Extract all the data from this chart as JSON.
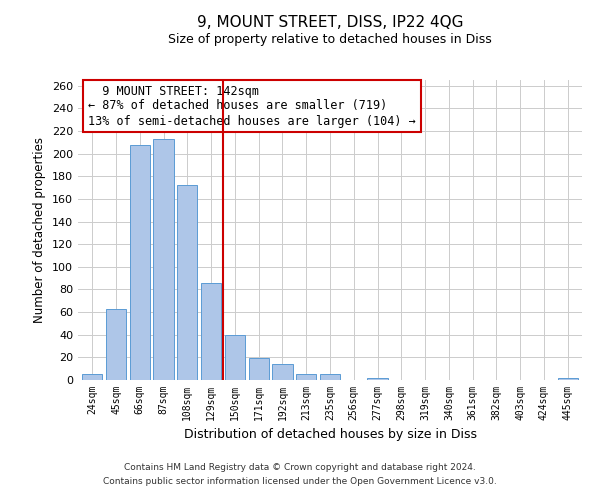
{
  "title1": "9, MOUNT STREET, DISS, IP22 4QG",
  "title2": "Size of property relative to detached houses in Diss",
  "xlabel": "Distribution of detached houses by size in Diss",
  "ylabel": "Number of detached properties",
  "bar_labels": [
    "24sqm",
    "45sqm",
    "66sqm",
    "87sqm",
    "108sqm",
    "129sqm",
    "150sqm",
    "171sqm",
    "192sqm",
    "213sqm",
    "235sqm",
    "256sqm",
    "277sqm",
    "298sqm",
    "319sqm",
    "340sqm",
    "361sqm",
    "382sqm",
    "403sqm",
    "424sqm",
    "445sqm"
  ],
  "bar_values": [
    5,
    63,
    208,
    213,
    172,
    86,
    40,
    19,
    14,
    5,
    5,
    0,
    2,
    0,
    0,
    0,
    0,
    0,
    0,
    0,
    2
  ],
  "bar_color": "#aec6e8",
  "bar_edge_color": "#5b9bd5",
  "vline_x": 5.5,
  "vline_color": "#cc0000",
  "annotation_title": "9 MOUNT STREET: 142sqm",
  "annotation_line1": "← 87% of detached houses are smaller (719)",
  "annotation_line2": "13% of semi-detached houses are larger (104) →",
  "annotation_box_color": "#ffffff",
  "annotation_box_edge": "#cc0000",
  "ylim": [
    0,
    265
  ],
  "yticks": [
    0,
    20,
    40,
    60,
    80,
    100,
    120,
    140,
    160,
    180,
    200,
    220,
    240,
    260
  ],
  "footer1": "Contains HM Land Registry data © Crown copyright and database right 2024.",
  "footer2": "Contains public sector information licensed under the Open Government Licence v3.0.",
  "bg_color": "#ffffff",
  "grid_color": "#cccccc"
}
